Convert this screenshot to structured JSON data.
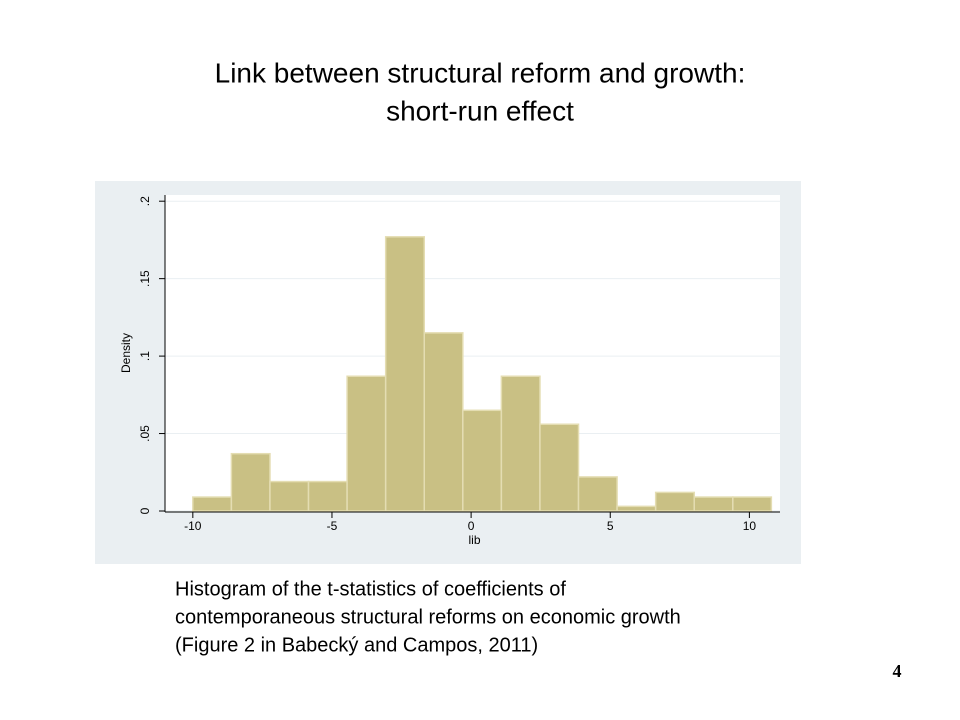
{
  "slide": {
    "title_lines": [
      "Link between structural reform and growth:",
      "short-run effect"
    ],
    "caption_lines": [
      "Histogram of the t-statistics of coefficients of",
      "contemporaneous structural reforms on economic growth",
      "(Figure 2 in Babecký and Campos, 2011)"
    ],
    "page_number": "4"
  },
  "chart_data": {
    "type": "histogram",
    "bins": [
      -10,
      -8.614,
      -7.228,
      -5.842,
      -4.456,
      -3.07,
      -1.684,
      -0.298,
      1.088,
      2.474,
      3.86,
      5.246,
      6.632,
      8.018,
      9.404,
      10.79
    ],
    "values": [
      0.009,
      0.037,
      0.019,
      0.019,
      0.087,
      0.177,
      0.115,
      0.065,
      0.087,
      0.056,
      0.022,
      0.003,
      0.012,
      0.009,
      0.009
    ],
    "color": "#c9c084",
    "xlabel": "lib",
    "ylabel": "Density",
    "xlim": [
      -11,
      11.1
    ],
    "ylim": [
      0,
      0.204
    ],
    "xticks": [
      -10,
      -5,
      0,
      5,
      10
    ],
    "yticks": [
      0,
      {
        "value": 0.05,
        "label": ".05"
      },
      {
        "value": 0.1,
        "label": ".1"
      },
      {
        "value": 0.15,
        "label": ".15"
      },
      {
        "value": 0.2,
        "label": ".2"
      }
    ],
    "grid": true
  }
}
